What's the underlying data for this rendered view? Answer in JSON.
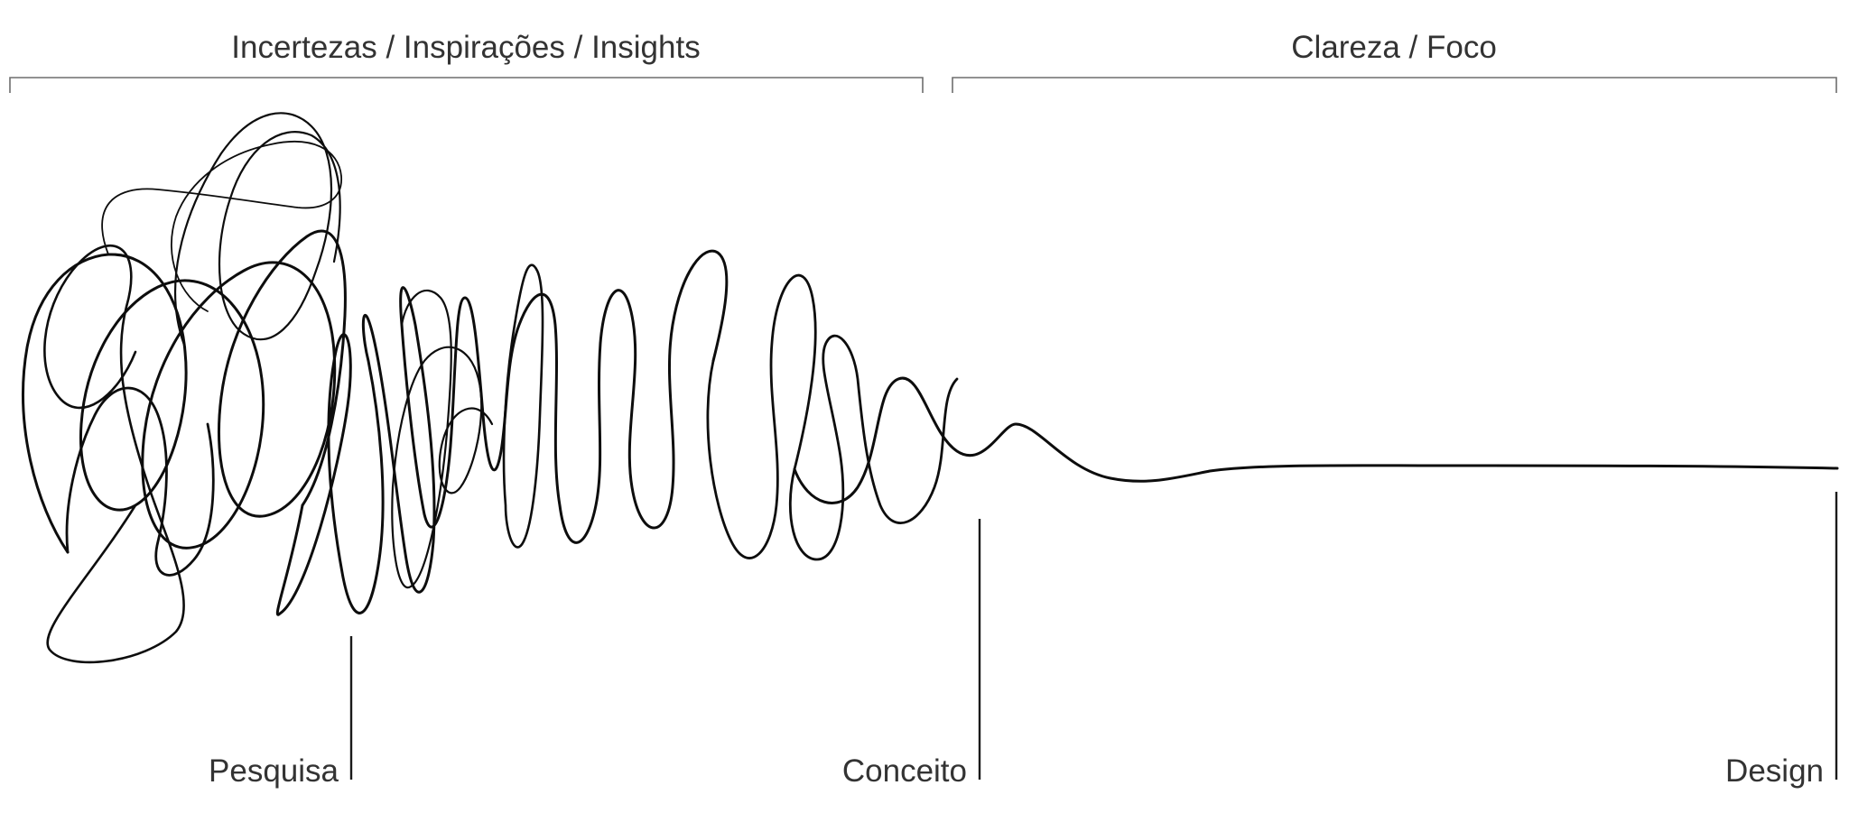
{
  "headings": {
    "uncertainty": "Incertezas / Inspirações / Insights",
    "clarity": "Clareza / Foco"
  },
  "milestones": {
    "research": "Pesquisa",
    "concept": "Conceito",
    "design": "Design"
  }
}
